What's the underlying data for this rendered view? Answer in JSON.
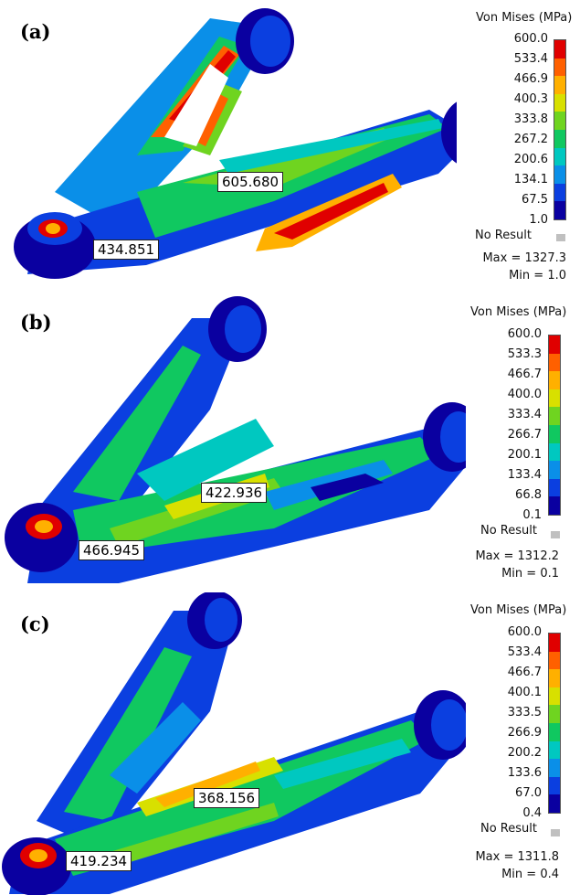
{
  "legend_title": "Von Mises (MPa)",
  "no_result": "No Result",
  "colors": [
    "#0a00a0",
    "#0b3fe0",
    "#0a8fe8",
    "#00c8c0",
    "#10c860",
    "#6fd420",
    "#d8e000",
    "#ffb000",
    "#ff6000",
    "#e00000"
  ],
  "panels": [
    {
      "label": "(a)",
      "ticks": [
        "600.0",
        "533.4",
        "466.9",
        "400.3",
        "333.8",
        "267.2",
        "200.6",
        "134.1",
        "67.5",
        "1.0"
      ],
      "max": "Max = 1327.3",
      "min": "Min = 1.0",
      "callouts": [
        "605.680",
        "434.851"
      ]
    },
    {
      "label": "(b)",
      "ticks": [
        "600.0",
        "533.3",
        "466.7",
        "400.0",
        "333.4",
        "266.7",
        "200.1",
        "133.4",
        "66.8",
        "0.1"
      ],
      "max": "Max = 1312.2",
      "min": "Min = 0.1",
      "callouts": [
        "422.936",
        "466.945"
      ]
    },
    {
      "label": "(c)",
      "ticks": [
        "600.0",
        "533.4",
        "466.7",
        "400.1",
        "333.5",
        "266.9",
        "200.2",
        "133.6",
        "67.0",
        "0.4"
      ],
      "max": "Max = 1311.8",
      "min": "Min = 0.4",
      "callouts": [
        "368.156",
        "419.234"
      ]
    }
  ]
}
